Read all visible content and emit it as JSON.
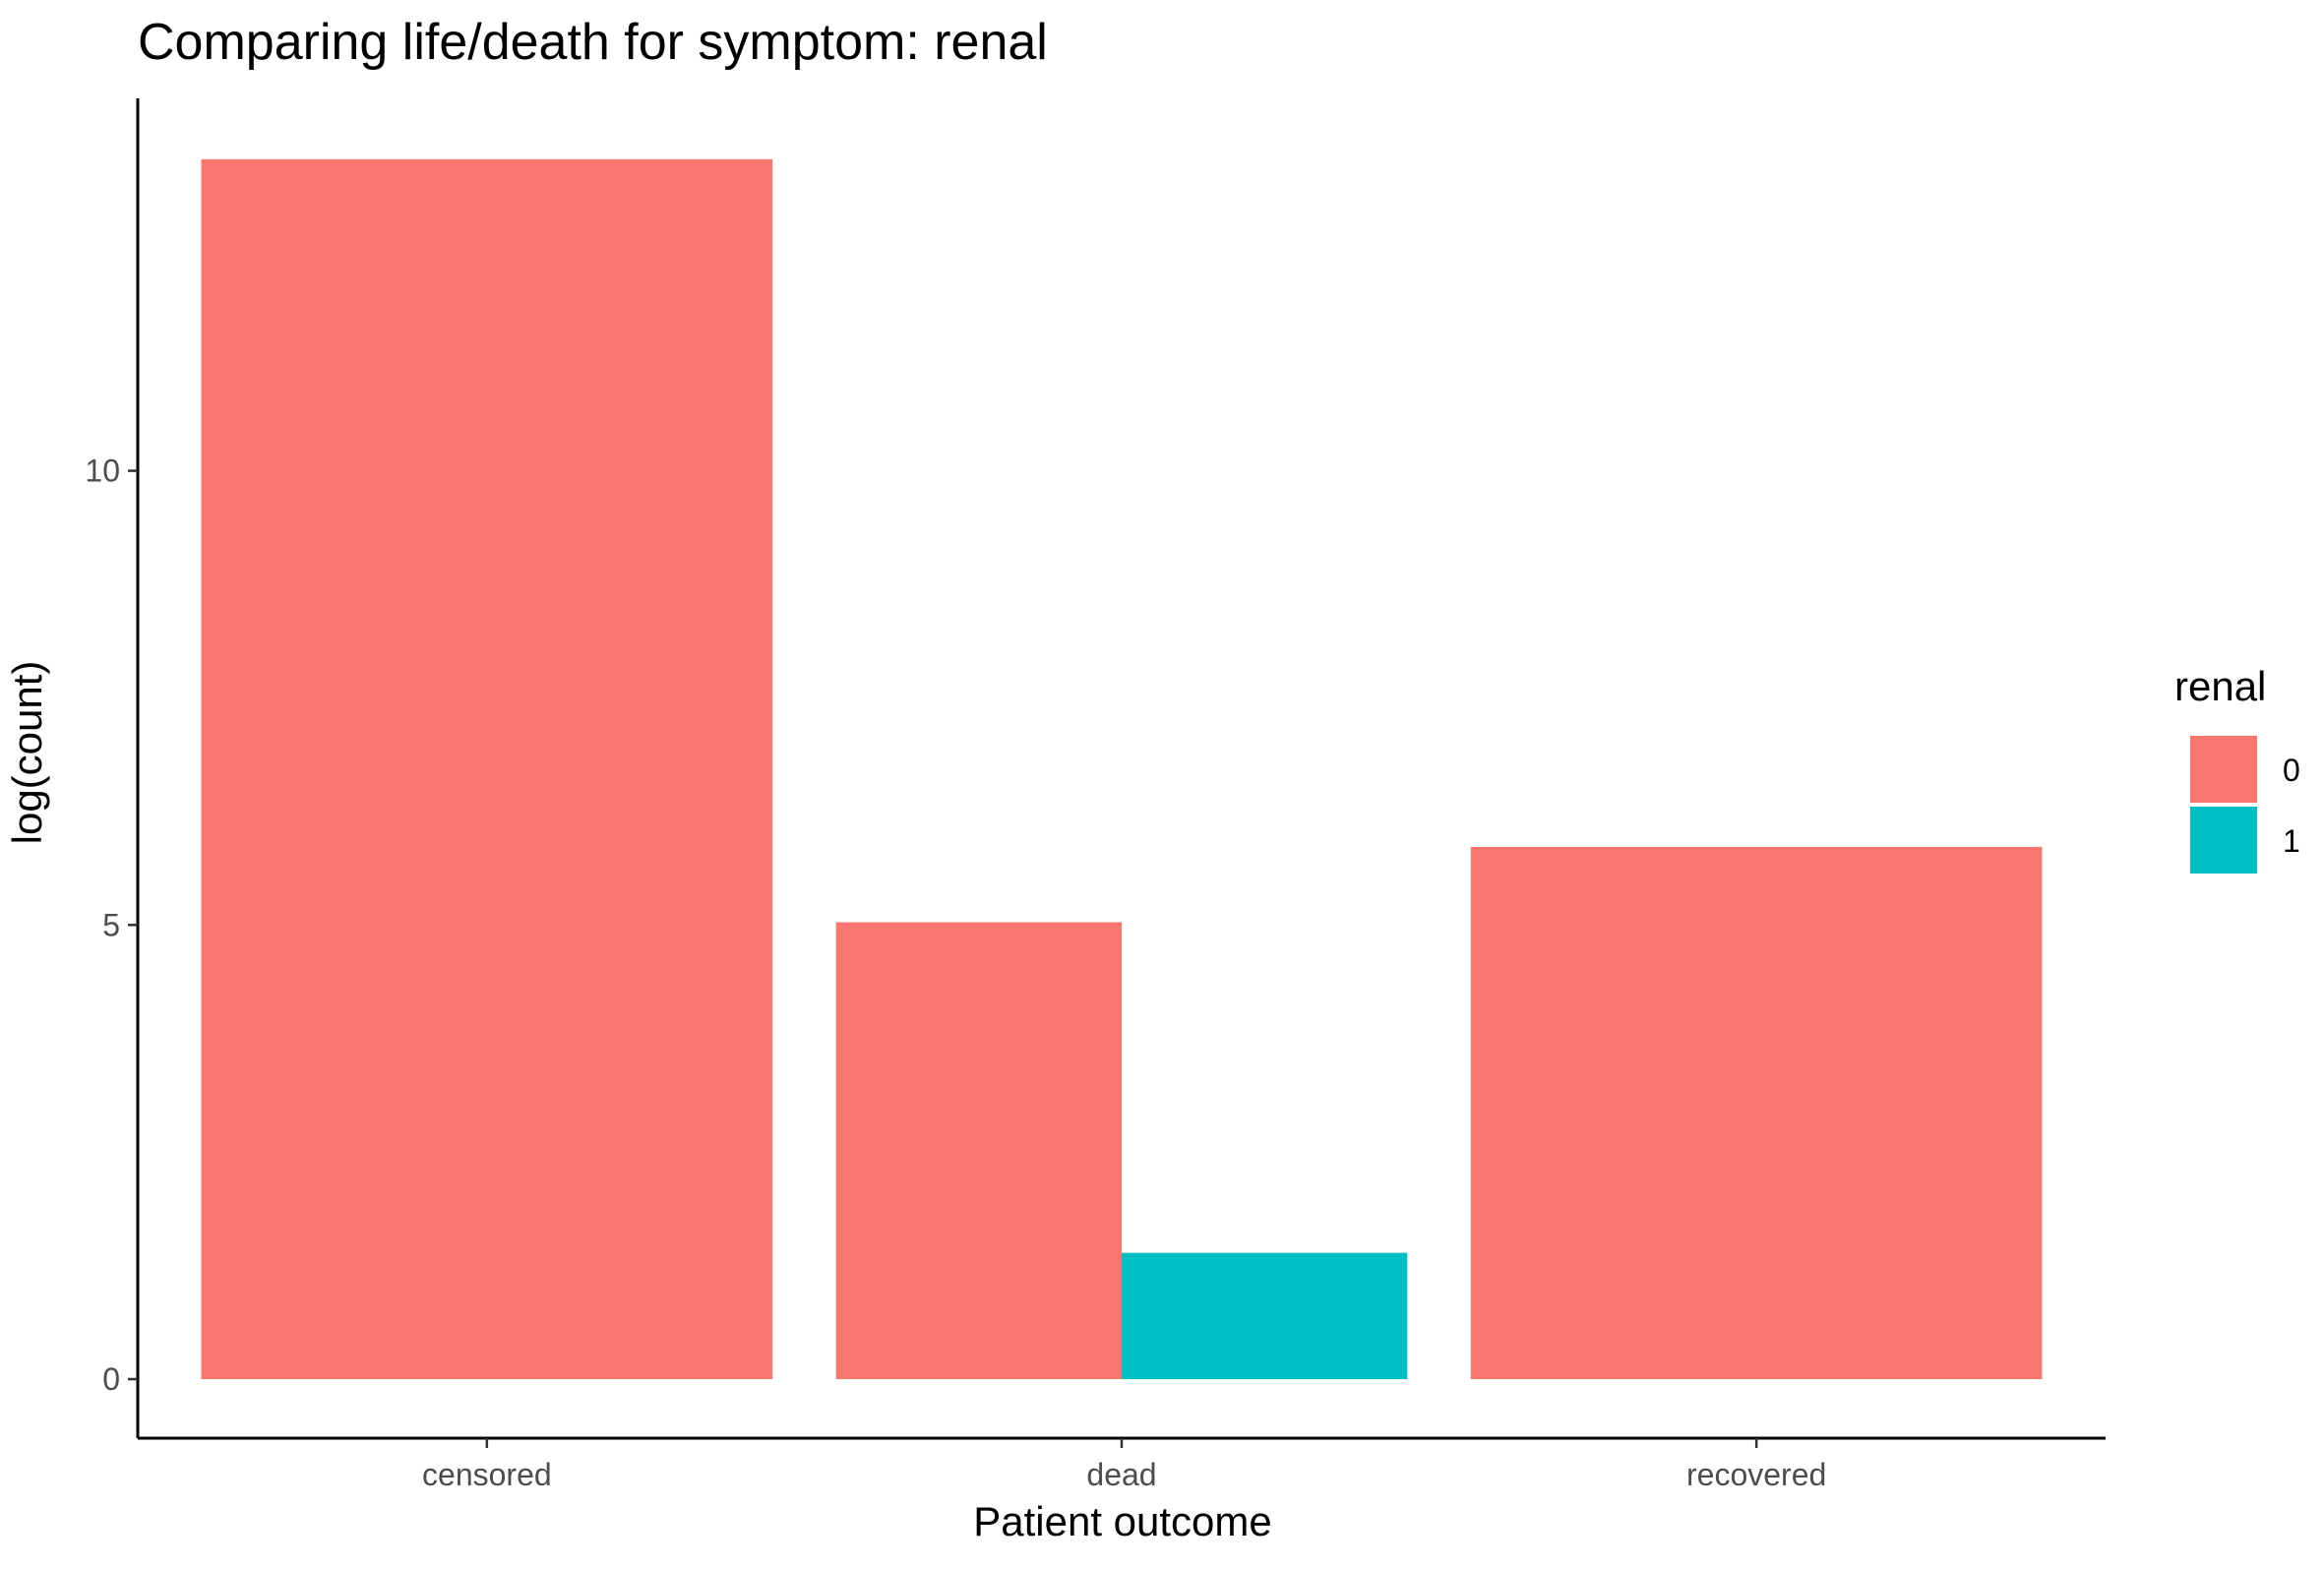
{
  "chart_data": {
    "type": "bar",
    "title": "Comparing life/death for symptom: renal",
    "xlabel": "Patient outcome",
    "ylabel": "log(count)",
    "categories": [
      "censored",
      "dead",
      "recovered"
    ],
    "ylim": [
      -0.65,
      14.1
    ],
    "yticks": [
      0,
      5,
      10
    ],
    "legend": {
      "title": "renal",
      "position": "right",
      "entries": [
        {
          "label": "0",
          "color": "#F8766D"
        },
        {
          "label": "1",
          "color": "#00BFC4"
        }
      ]
    },
    "series": [
      {
        "name": "0",
        "color": "#F8766D",
        "values": [
          13.43,
          5.03,
          5.86
        ]
      },
      {
        "name": "1",
        "color": "#00BFC4",
        "values": [
          null,
          1.39,
          null
        ]
      }
    ],
    "grid": false,
    "dodge": "preserve-total"
  }
}
